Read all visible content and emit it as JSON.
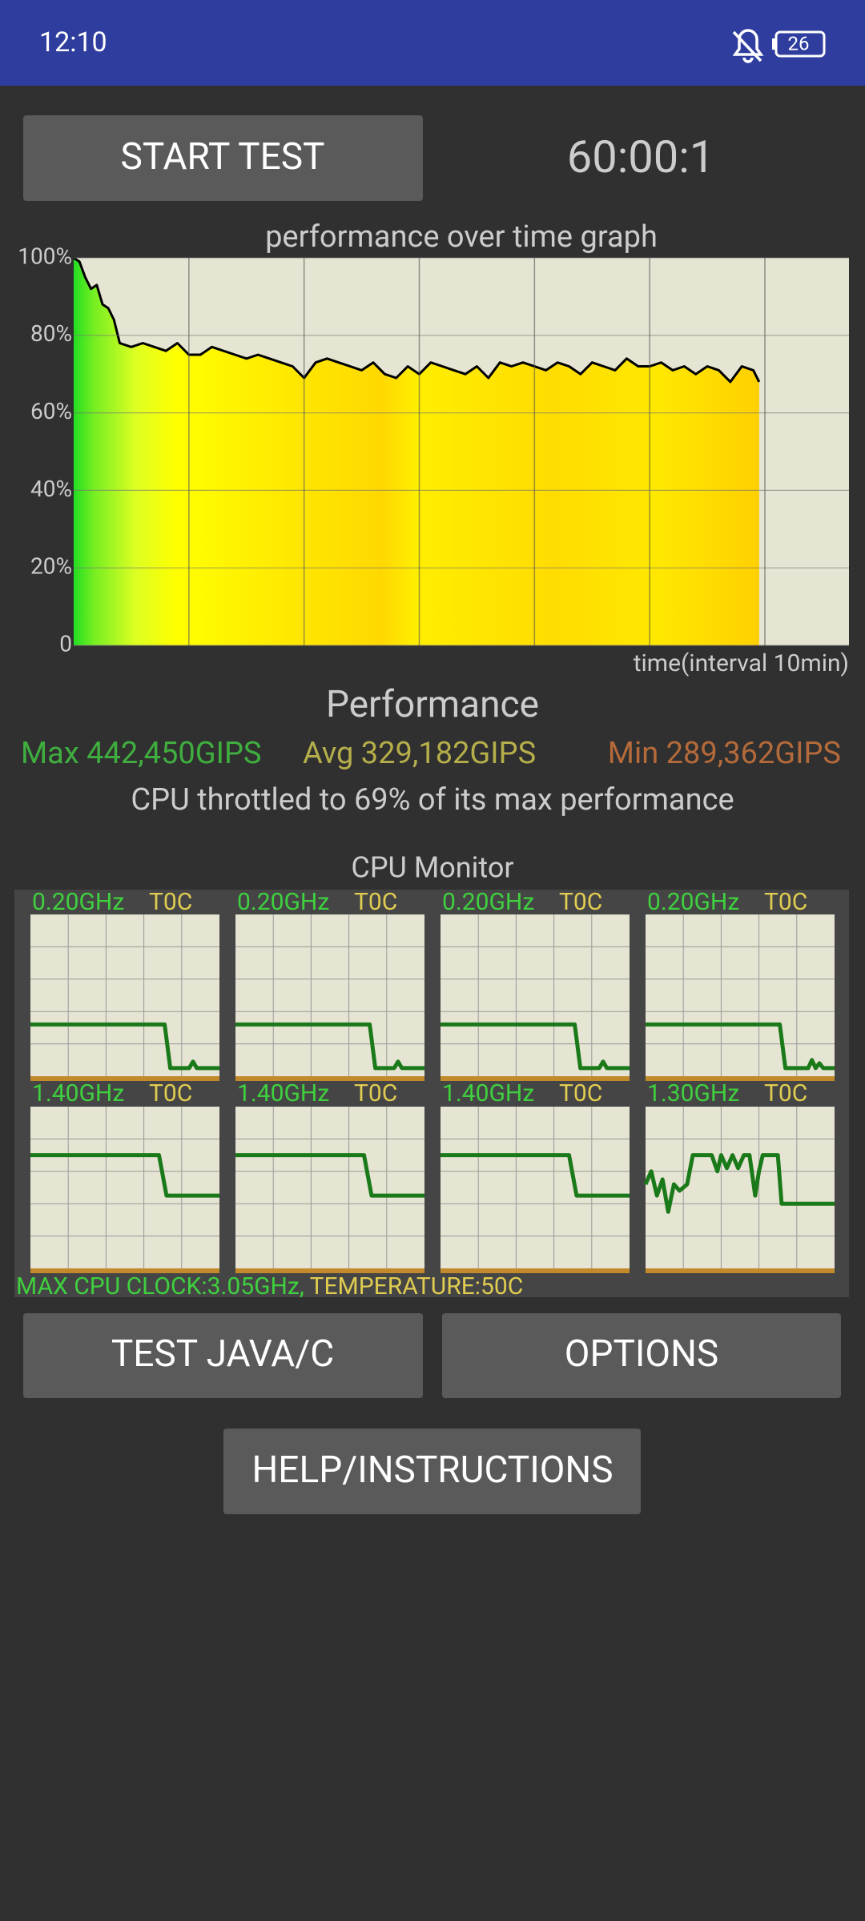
{
  "status_bar": {
    "time": "12:10",
    "battery": "26"
  },
  "buttons": {
    "start": "START TEST",
    "test": "TEST JAVA/C",
    "options": "OPTIONS",
    "help": "HELP/INSTRUCTIONS"
  },
  "timer": "60:00:1",
  "chart_data": {
    "type": "line",
    "title": "performance over time graph",
    "x_label": "time(interval 10min)",
    "xlim": [
      0,
      67.3
    ],
    "xgrid": [
      10,
      20,
      30,
      40,
      50,
      60
    ],
    "ylim": [
      0,
      100
    ],
    "yticks": [
      0,
      {
        "value": 20,
        "label": "20%"
      },
      {
        "value": 40,
        "label": "40%"
      },
      {
        "value": 60,
        "label": "60%"
      },
      {
        "value": 80,
        "label": "80%"
      },
      {
        "value": 100,
        "label": "100%"
      }
    ],
    "grid": true,
    "series": [
      {
        "color": "#000000",
        "x": [
          0,
          0.5,
          1,
          1.5,
          2,
          2.5,
          3,
          3.5,
          4,
          5,
          6,
          7,
          8,
          9,
          10,
          11,
          12,
          14,
          15,
          16,
          17,
          18,
          19,
          20,
          21,
          22,
          23,
          24,
          25,
          26,
          27,
          28,
          29,
          30,
          31,
          32,
          33,
          34,
          35,
          36,
          37,
          38,
          39,
          40,
          41,
          42,
          43,
          44,
          45,
          46,
          47,
          48,
          49,
          50,
          51,
          52,
          53,
          54,
          55,
          56,
          57,
          58,
          59,
          59.5
        ],
        "values": [
          100,
          99,
          95,
          92,
          93,
          88,
          87,
          84,
          78,
          77,
          78,
          77,
          76,
          78,
          75,
          75,
          77,
          75,
          74,
          75,
          74,
          73,
          72,
          69,
          73,
          74,
          73,
          72,
          71,
          73,
          70,
          69,
          72,
          70,
          73,
          72,
          71,
          70,
          72,
          69,
          73,
          72,
          73,
          72,
          71,
          73,
          72,
          70,
          73,
          72,
          71,
          74,
          72,
          72,
          73,
          71,
          72,
          70,
          72,
          71,
          68,
          72,
          71,
          68
        ]
      }
    ]
  },
  "performance": {
    "heading": "Performance",
    "max": "Max 442,450GIPS",
    "avg": "Avg 329,182GIPS",
    "min": "Min 289,362GIPS",
    "throttle": "CPU throttled to 69% of its max performance"
  },
  "cpu_monitor": {
    "title": "CPU Monitor",
    "cores": [
      {
        "clock": "0.20GHz",
        "temp": "T0C",
        "x": [
          0,
          71,
          74,
          84,
          86,
          88,
          100
        ],
        "y": [
          32,
          32,
          5,
          5,
          9,
          5,
          5
        ]
      },
      {
        "clock": "0.20GHz",
        "temp": "T0C",
        "x": [
          0,
          71,
          74,
          84,
          86,
          88,
          100
        ],
        "y": [
          32,
          32,
          5,
          5,
          9,
          5,
          5
        ]
      },
      {
        "clock": "0.20GHz",
        "temp": "T0C",
        "x": [
          0,
          71,
          74,
          84,
          86,
          88,
          100
        ],
        "y": [
          32,
          32,
          5,
          5,
          9,
          5,
          5
        ]
      },
      {
        "clock": "0.20GHz",
        "temp": "T0C",
        "x": [
          0,
          71,
          74,
          86,
          88,
          90,
          92,
          94,
          100
        ],
        "y": [
          32,
          32,
          5,
          5,
          10,
          5,
          8,
          5,
          5
        ]
      },
      {
        "clock": "1.40GHz",
        "temp": "T0C",
        "x": [
          0,
          68,
          72,
          100
        ],
        "y": [
          70,
          70,
          45,
          45
        ]
      },
      {
        "clock": "1.40GHz",
        "temp": "T0C",
        "x": [
          0,
          68,
          72,
          100
        ],
        "y": [
          70,
          70,
          45,
          45
        ]
      },
      {
        "clock": "1.40GHz",
        "temp": "T0C",
        "x": [
          0,
          68,
          72,
          100
        ],
        "y": [
          70,
          70,
          45,
          45
        ]
      },
      {
        "clock": "1.30GHz",
        "temp": "T0C",
        "x": [
          0,
          3,
          6,
          9,
          12,
          15,
          18,
          22,
          25,
          35,
          38,
          40,
          43,
          46,
          49,
          52,
          55,
          58,
          60,
          62,
          70,
          72,
          100
        ],
        "y": [
          52,
          60,
          45,
          55,
          35,
          52,
          48,
          52,
          70,
          70,
          60,
          70,
          62,
          70,
          62,
          70,
          70,
          45,
          60,
          70,
          70,
          40,
          40
        ]
      }
    ],
    "max_clock": "MAX CPU CLOCK:3.05GHz,",
    "temperature": "TEMPERATURE:50C"
  }
}
